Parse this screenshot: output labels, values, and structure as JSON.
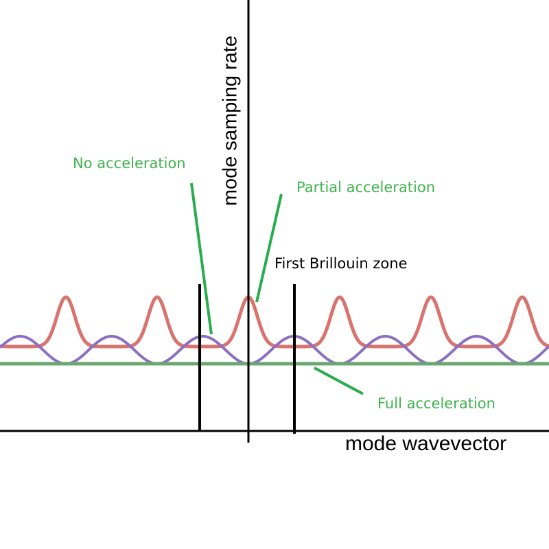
{
  "colors": {
    "no_acceleration_curve": "#d8736e",
    "partial_acceleration_curve": "#8c6fc0",
    "full_acceleration_curve": "#6aa771",
    "annotation_text": "#3cb44b",
    "pointer_line": "#27ad4c",
    "axis": "#000000"
  },
  "labels": {
    "no_acceleration": "No acceleration",
    "partial_acceleration": "Partial acceleration",
    "full_acceleration": "Full acceleration",
    "brillouin_zone": "First Brillouin zone",
    "x_axis": "mode wavevector",
    "y_axis": "mode samping rate"
  }
}
